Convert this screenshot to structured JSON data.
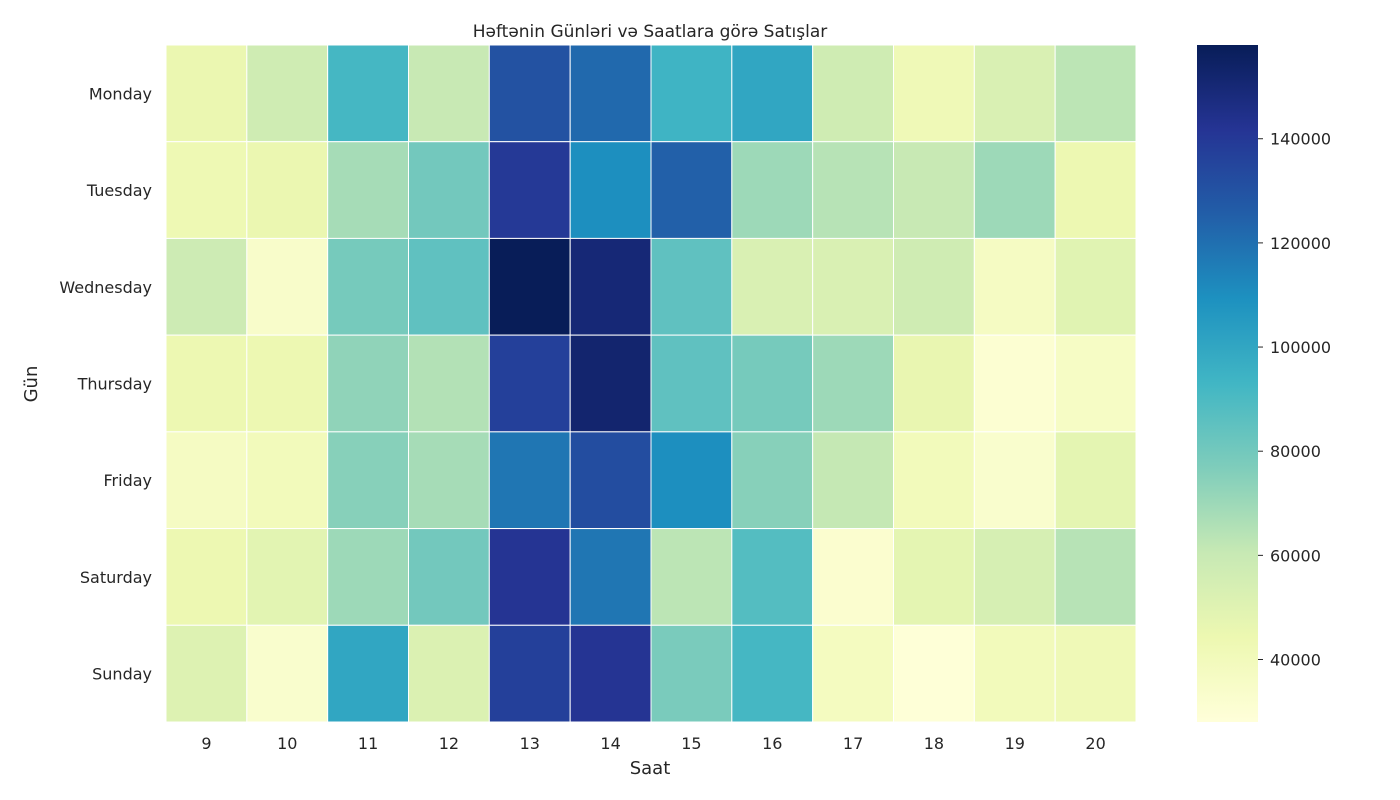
{
  "chart_data": {
    "type": "heatmap",
    "title": "Həftənin Günləri və Saatlara görə Satışlar",
    "xlabel": "Saat",
    "ylabel": "Gün",
    "x_categories": [
      "9",
      "10",
      "11",
      "12",
      "13",
      "14",
      "15",
      "16",
      "17",
      "18",
      "19",
      "20"
    ],
    "y_categories": [
      "Monday",
      "Tuesday",
      "Wednesday",
      "Thursday",
      "Friday",
      "Saturday",
      "Sunday"
    ],
    "values": [
      [
        45000,
        57000,
        92000,
        60000,
        130000,
        122000,
        94000,
        100000,
        57000,
        42000,
        53000,
        63000
      ],
      [
        43000,
        45000,
        68000,
        80000,
        140000,
        110000,
        125000,
        70000,
        64000,
        60000,
        70000,
        44000
      ],
      [
        58000,
        34000,
        79000,
        85000,
        158000,
        150000,
        85000,
        53000,
        53000,
        57000,
        37000,
        50000
      ],
      [
        44000,
        44000,
        73000,
        65000,
        137000,
        152000,
        85000,
        79000,
        70000,
        46000,
        31000,
        36000
      ],
      [
        37000,
        40000,
        75000,
        68000,
        118000,
        132000,
        110000,
        75000,
        61000,
        40000,
        33000,
        48000
      ],
      [
        44000,
        49000,
        70000,
        80000,
        142000,
        118000,
        63000,
        88000,
        32000,
        48000,
        54000,
        64000
      ],
      [
        51000,
        33000,
        100000,
        52000,
        137000,
        142000,
        78000,
        92000,
        38000,
        29000,
        40000,
        42000
      ]
    ],
    "vmin": 28000,
    "vmax": 158000,
    "colorbar_ticks": [
      "40000",
      "60000",
      "80000",
      "100000",
      "120000",
      "140000"
    ],
    "colormap": "YlGnBu",
    "colormap_stops": [
      "#ffffd9",
      "#edf8b1",
      "#c7e9b4",
      "#7fcdbb",
      "#41b6c4",
      "#1d91c0",
      "#225ea8",
      "#253494",
      "#081d58"
    ],
    "cell_border_color": "#ffffff"
  }
}
